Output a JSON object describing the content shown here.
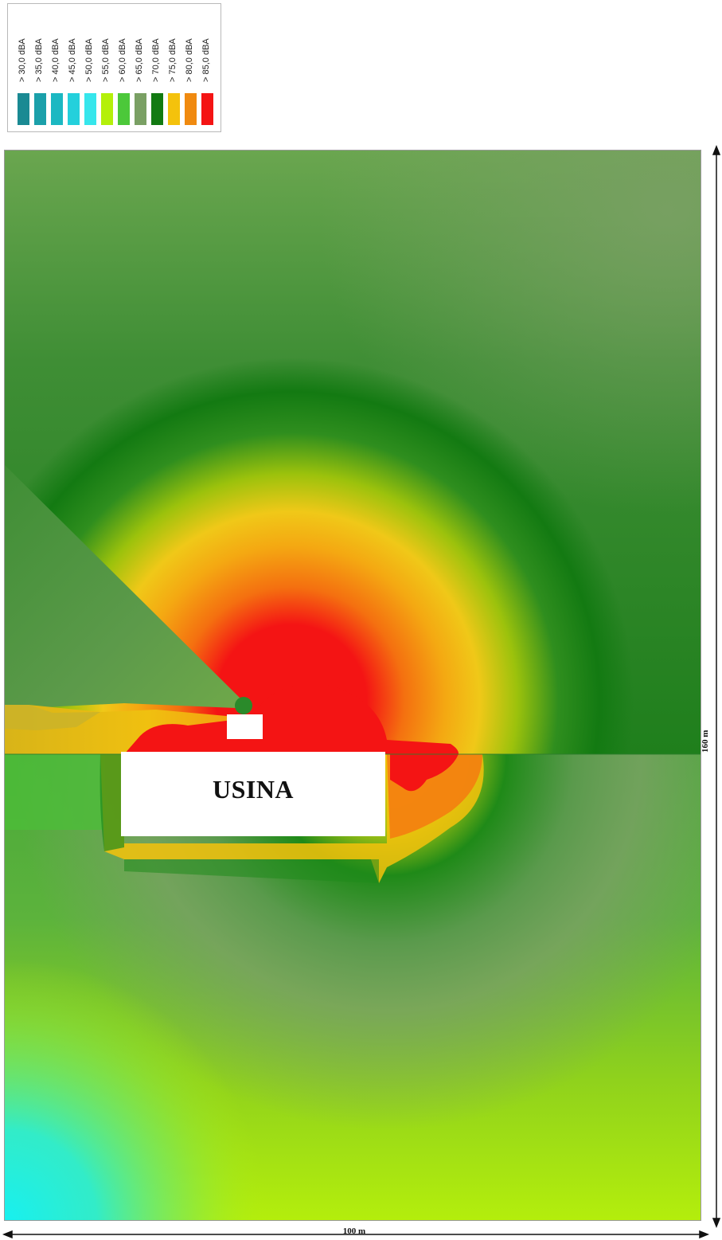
{
  "legend": {
    "items": [
      {
        "label": "> 30,0 dBA",
        "color": "#1a8a93"
      },
      {
        "label": "> 35,0 dBA",
        "color": "#1ba0aa"
      },
      {
        "label": "> 40,0 dBA",
        "color": "#1bb8c2"
      },
      {
        "label": "> 45,0 dBA",
        "color": "#24d0dc"
      },
      {
        "label": "> 50,0 dBA",
        "color": "#36e6ec"
      },
      {
        "label": "> 55,0 dBA",
        "color": "#b4f00a"
      },
      {
        "label": "> 60,0 dBA",
        "color": "#4cc83a"
      },
      {
        "label": "> 65,0 dBA",
        "color": "#7aa064"
      },
      {
        "label": "> 70,0 dBA",
        "color": "#127a12"
      },
      {
        "label": "> 75,0 dBA",
        "color": "#f4c20c"
      },
      {
        "label": "> 80,0 dBA",
        "color": "#f08a10"
      },
      {
        "label": "> 85,0 dBA",
        "color": "#f41414"
      }
    ]
  },
  "map": {
    "building_label": "USINA"
  },
  "dimensions": {
    "width_label": "100 m",
    "height_label": "160 m"
  }
}
